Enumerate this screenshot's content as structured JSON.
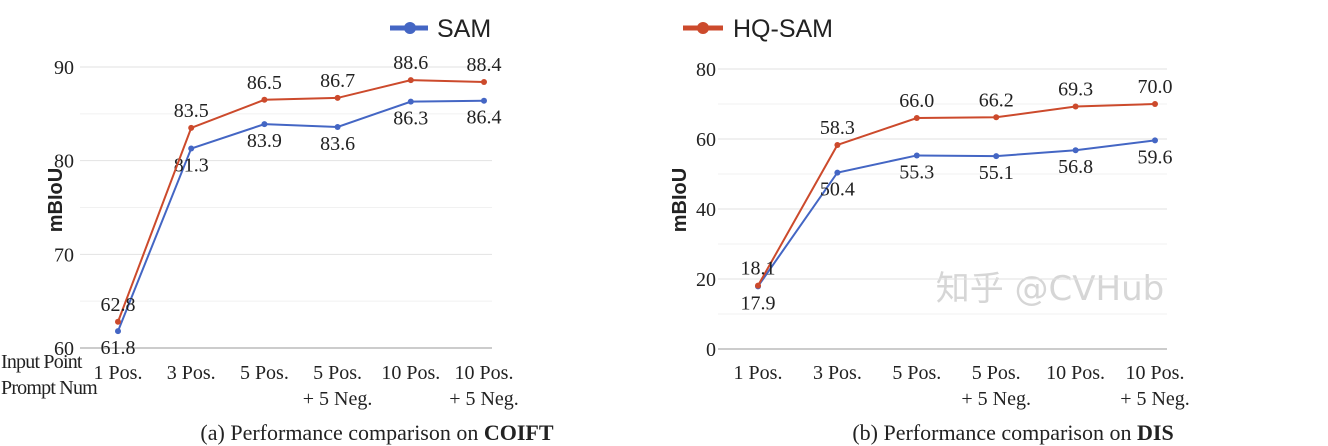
{
  "legend": {
    "placement": "top-center",
    "items": [
      {
        "name": "SAM",
        "color": "#4466c4"
      },
      {
        "name": "HQ-SAM",
        "color": "#cc4a2c"
      }
    ]
  },
  "x_axis_title_lines": [
    "Input Point",
    "Prompt Num"
  ],
  "watermark": "知乎 @CVHub",
  "chart_data": [
    {
      "type": "line",
      "caption_prefix": "(a) Performance comparison on ",
      "caption_bold": "COIFT",
      "ylabel": "mBIoU",
      "ylim": [
        60,
        90
      ],
      "yticks": [
        60,
        70,
        80,
        90
      ],
      "grid": true,
      "categories": [
        [
          "1 Pos."
        ],
        [
          "3 Pos."
        ],
        [
          "5 Pos."
        ],
        [
          "5 Pos.",
          "+ 5 Neg."
        ],
        [
          "10 Pos."
        ],
        [
          "10 Pos.",
          "+ 5 Neg."
        ]
      ],
      "series": [
        {
          "name": "SAM",
          "values": [
            61.8,
            81.3,
            83.9,
            83.6,
            86.3,
            86.4
          ]
        },
        {
          "name": "HQ-SAM",
          "values": [
            62.8,
            83.5,
            86.5,
            86.7,
            88.6,
            88.4
          ]
        }
      ]
    },
    {
      "type": "line",
      "caption_prefix": "(b) Performance comparison on ",
      "caption_bold": "DIS",
      "ylabel": "mBIoU",
      "ylim": [
        0,
        80
      ],
      "yticks": [
        0,
        20,
        40,
        60,
        80
      ],
      "grid": true,
      "categories": [
        [
          "1 Pos."
        ],
        [
          "3 Pos."
        ],
        [
          "5 Pos."
        ],
        [
          "5 Pos.",
          "+ 5 Neg."
        ],
        [
          "10 Pos."
        ],
        [
          "10 Pos.",
          "+ 5 Neg."
        ]
      ],
      "series": [
        {
          "name": "SAM",
          "values": [
            17.9,
            50.4,
            55.3,
            55.1,
            56.8,
            59.6
          ]
        },
        {
          "name": "HQ-SAM",
          "values": [
            18.1,
            58.3,
            66.0,
            66.2,
            69.3,
            70.0
          ]
        }
      ]
    }
  ]
}
